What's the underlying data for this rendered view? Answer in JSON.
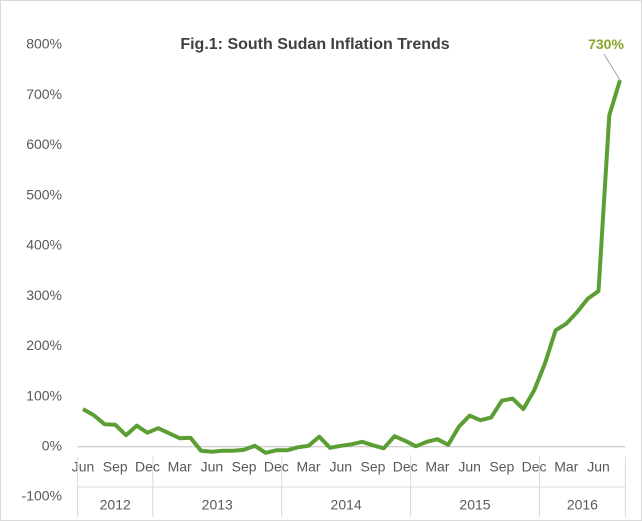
{
  "chart_data": {
    "type": "line",
    "title": "Fig.1: South Sudan Inflation Trends",
    "categories": [
      "Jun",
      null,
      null,
      "Sep",
      null,
      null,
      "Dec",
      null,
      null,
      "Mar",
      null,
      null,
      "Jun",
      null,
      null,
      "Sep",
      null,
      null,
      "Dec",
      null,
      null,
      "Mar",
      null,
      null,
      "Jun",
      null,
      null,
      "Sep",
      null,
      null,
      "Dec",
      null,
      null,
      "Mar",
      null,
      null,
      "Jun",
      null,
      null,
      "Sep",
      null,
      null,
      "Dec",
      null,
      null,
      "Mar",
      null,
      null,
      "Jun",
      null,
      null
    ],
    "year_groups": [
      {
        "label": "2012",
        "months": 7
      },
      {
        "label": "2013",
        "months": 12
      },
      {
        "label": "2014",
        "months": 12
      },
      {
        "label": "2015",
        "months": 12
      },
      {
        "label": "2016",
        "months": 8
      }
    ],
    "series": [
      {
        "color": "#5b9e34",
        "values": [
          75,
          63,
          45,
          44,
          23,
          42,
          28,
          37,
          27,
          17,
          18,
          -8,
          -10,
          -8,
          -8,
          -6,
          2,
          -12,
          -7,
          -7,
          -1,
          2,
          20,
          -2,
          2,
          5,
          10,
          3,
          -3,
          21,
          12,
          1,
          10,
          15,
          4,
          40,
          62,
          53,
          58,
          92,
          96,
          75,
          112,
          165,
          232,
          245,
          268,
          295,
          310,
          660,
          730
        ],
        "value_labels": [
          null,
          null,
          null,
          null,
          null,
          null,
          null,
          null,
          null,
          null,
          null,
          null,
          null,
          null,
          null,
          null,
          null,
          null,
          null,
          null,
          null,
          null,
          null,
          null,
          null,
          null,
          null,
          null,
          null,
          null,
          null,
          null,
          null,
          null,
          null,
          null,
          null,
          null,
          null,
          null,
          null,
          null,
          null,
          null,
          null,
          null,
          null,
          null,
          null,
          null,
          "730%"
        ],
        "label_color": "#8aa62a"
      }
    ],
    "ylim": [
      -100,
      800
    ],
    "yticks": [
      {
        "value": -100,
        "label": "-100%"
      },
      {
        "value": 0,
        "label": "0%"
      },
      {
        "value": 100,
        "label": "100%"
      },
      {
        "value": 200,
        "label": "200%"
      },
      {
        "value": 300,
        "label": "300%"
      },
      {
        "value": 400,
        "label": "400%"
      },
      {
        "value": 500,
        "label": "500%"
      },
      {
        "value": 600,
        "label": "600%"
      },
      {
        "value": 700,
        "label": "700%"
      },
      {
        "value": 800,
        "label": "800%"
      }
    ],
    "grid": false
  }
}
